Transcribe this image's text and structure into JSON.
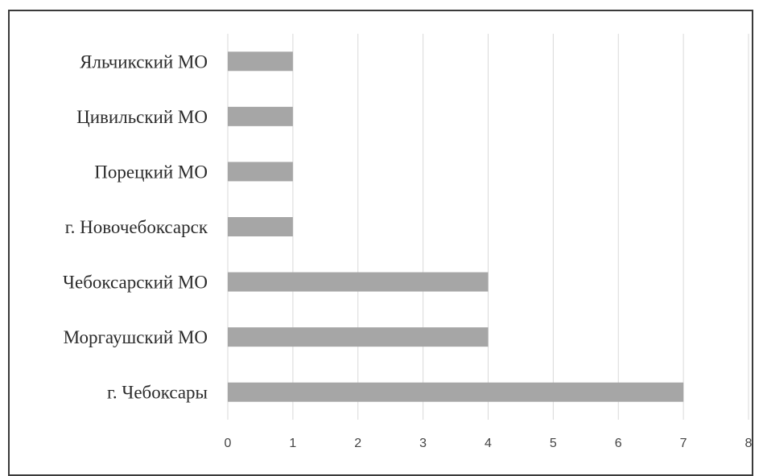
{
  "chart_data": {
    "type": "bar",
    "orientation": "horizontal",
    "categories": [
      "Яльчикский МО",
      "Цивильский МО",
      "Порецкий МО",
      "г. Новочебоксарск",
      "Чебоксарский МО",
      "Моргаушский МО",
      "г. Чебоксары"
    ],
    "values": [
      1,
      1,
      1,
      1,
      4,
      4,
      7
    ],
    "xlim": [
      0,
      8
    ],
    "xticks": [
      "0",
      "1",
      "2",
      "3",
      "4",
      "5",
      "6",
      "7",
      "8"
    ],
    "title": "",
    "xlabel": "",
    "ylabel": "",
    "grid": "vertical",
    "legend": "none",
    "bar_color": "#a6a6a6",
    "grid_color": "#d9d9d9"
  }
}
